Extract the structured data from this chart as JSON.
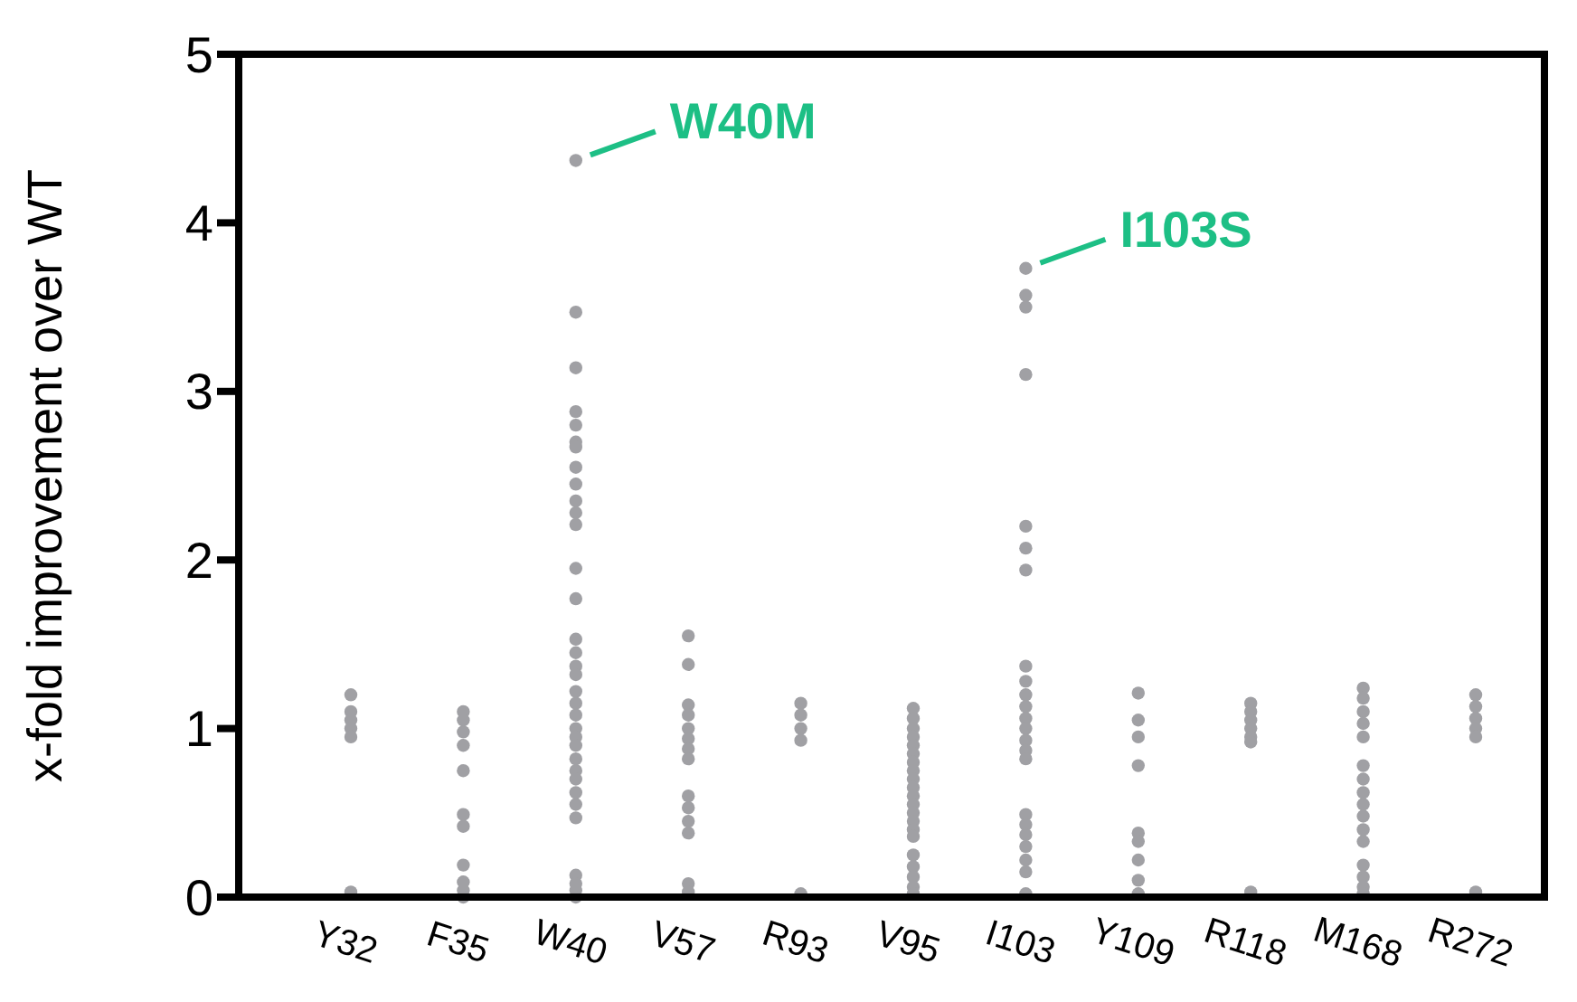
{
  "chart_data": {
    "type": "scatter",
    "ylabel": "x-fold improvement over WT",
    "categories": [
      "Y32",
      "F35",
      "W40",
      "V57",
      "R93",
      "V95",
      "I103",
      "Y109",
      "R118",
      "M168",
      "R272"
    ],
    "ylim": [
      0,
      5
    ],
    "yticks": [
      0,
      1,
      2,
      3,
      4,
      5
    ],
    "grid": false,
    "marker": "circle",
    "series": [
      {
        "color": "#a0a0a4",
        "x": [
          "Y32",
          "Y32",
          "Y32",
          "Y32",
          "Y32",
          "Y32",
          "F35",
          "F35",
          "F35",
          "F35",
          "F35",
          "F35",
          "F35",
          "F35",
          "F35",
          "F35",
          "F35",
          "W40",
          "W40",
          "W40",
          "W40",
          "W40",
          "W40",
          "W40",
          "W40",
          "W40",
          "W40",
          "W40",
          "W40",
          "W40",
          "W40",
          "W40",
          "W40",
          "W40",
          "W40",
          "W40",
          "W40",
          "W40",
          "W40",
          "W40",
          "W40",
          "W40",
          "W40",
          "W40",
          "W40",
          "W40",
          "W40",
          "W40",
          "W40",
          "W40",
          "W40",
          "V57",
          "V57",
          "V57",
          "V57",
          "V57",
          "V57",
          "V57",
          "V57",
          "V57",
          "V57",
          "V57",
          "V57",
          "V57",
          "V57",
          "R93",
          "R93",
          "R93",
          "R93",
          "R93",
          "V95",
          "V95",
          "V95",
          "V95",
          "V95",
          "V95",
          "V95",
          "V95",
          "V95",
          "V95",
          "V95",
          "V95",
          "V95",
          "V95",
          "V95",
          "V95",
          "V95",
          "V95",
          "V95",
          "V95",
          "V95",
          "I103",
          "I103",
          "I103",
          "I103",
          "I103",
          "I103",
          "I103",
          "I103",
          "I103",
          "I103",
          "I103",
          "I103",
          "I103",
          "I103",
          "I103",
          "I103",
          "I103",
          "I103",
          "I103",
          "I103",
          "I103",
          "I103",
          "I103",
          "Y109",
          "Y109",
          "Y109",
          "Y109",
          "Y109",
          "Y109",
          "Y109",
          "Y109",
          "Y109",
          "R118",
          "R118",
          "R118",
          "R118",
          "R118",
          "R118",
          "R118",
          "M168",
          "M168",
          "M168",
          "M168",
          "M168",
          "M168",
          "M168",
          "M168",
          "M168",
          "M168",
          "M168",
          "M168",
          "M168",
          "M168",
          "M168",
          "M168",
          "R272",
          "R272",
          "R272",
          "R272",
          "R272",
          "R272"
        ],
        "values": [
          1.2,
          1.1,
          1.05,
          1.0,
          0.95,
          0.03,
          1.1,
          1.05,
          0.98,
          0.9,
          0.75,
          0.49,
          0.42,
          0.19,
          0.09,
          0.04,
          0.0,
          4.37,
          3.47,
          3.14,
          2.88,
          2.8,
          2.7,
          2.67,
          2.55,
          2.45,
          2.35,
          2.28,
          2.21,
          1.95,
          1.77,
          1.53,
          1.45,
          1.37,
          1.32,
          1.22,
          1.15,
          1.08,
          1.0,
          0.95,
          0.9,
          0.82,
          0.75,
          0.7,
          0.62,
          0.55,
          0.47,
          0.13,
          0.08,
          0.04,
          0.0,
          1.55,
          1.38,
          1.14,
          1.08,
          1.0,
          0.94,
          0.88,
          0.82,
          0.6,
          0.53,
          0.45,
          0.38,
          0.08,
          0.03,
          1.15,
          1.08,
          1.0,
          0.93,
          0.02,
          1.12,
          1.06,
          1.0,
          0.95,
          0.9,
          0.85,
          0.8,
          0.75,
          0.7,
          0.65,
          0.6,
          0.55,
          0.5,
          0.45,
          0.4,
          0.36,
          0.25,
          0.18,
          0.12,
          0.06,
          0.02,
          3.73,
          3.57,
          3.5,
          3.1,
          2.2,
          2.07,
          1.94,
          1.37,
          1.28,
          1.2,
          1.13,
          1.06,
          1.0,
          0.93,
          0.87,
          0.82,
          0.49,
          0.43,
          0.37,
          0.3,
          0.22,
          0.15,
          0.02,
          1.21,
          1.05,
          0.95,
          0.78,
          0.38,
          0.33,
          0.22,
          0.1,
          0.02,
          1.15,
          1.1,
          1.05,
          1.0,
          0.95,
          0.92,
          0.03,
          1.24,
          1.18,
          1.1,
          1.03,
          0.95,
          0.78,
          0.7,
          0.62,
          0.55,
          0.48,
          0.4,
          0.33,
          0.19,
          0.12,
          0.06,
          0.02,
          1.2,
          1.13,
          1.06,
          1.0,
          0.95,
          0.03
        ]
      }
    ],
    "annotations": [
      {
        "text": "W40M",
        "x": "W40",
        "y": 4.37
      },
      {
        "text": "I103S",
        "x": "I103",
        "y": 3.73
      }
    ]
  }
}
